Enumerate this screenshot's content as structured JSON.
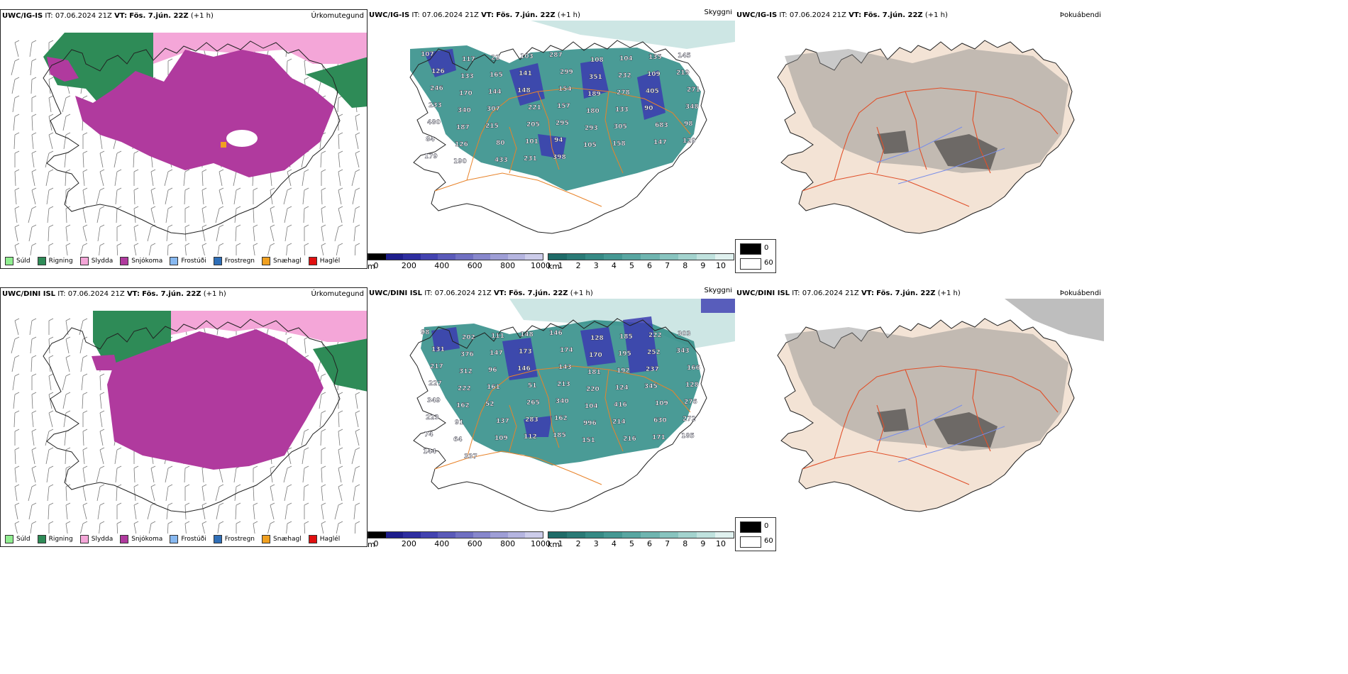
{
  "rows": [
    {
      "model": "UWC/IG-IS",
      "it_label": "IT:",
      "it_value": "07.06.2024 21Z",
      "vt_label": "VT:",
      "vt_value": "Fös. 7.jún. 22Z",
      "lead": "(+1 h)",
      "precip_title": "Úrkomutegund",
      "cloud_title": "Skyggni",
      "fog_title": "Þokuábendi",
      "cloud_numbers": [
        "107",
        "117",
        "22",
        "103",
        "287",
        "108",
        "104",
        "135",
        "145",
        "126",
        "133",
        "165",
        "141",
        "299",
        "351",
        "232",
        "109",
        "219",
        "246",
        "170",
        "144",
        "148",
        "154",
        "189",
        "278",
        "405",
        "271",
        "233",
        "340",
        "307",
        "221",
        "157",
        "180",
        "133",
        "90",
        "348",
        "480",
        "187",
        "215",
        "205",
        "295",
        "293",
        "305",
        "683",
        "98",
        "84",
        "126",
        "80",
        "101",
        "94",
        "105",
        "158",
        "147",
        "129",
        "179",
        "190",
        "433",
        "231",
        "398"
      ]
    },
    {
      "model": "UWC/DINI ISL",
      "it_label": "IT:",
      "it_value": "07.06.2024 21Z",
      "vt_label": "VT:",
      "vt_value": "Fös. 7.jún. 22Z",
      "lead": "(+1 h)",
      "precip_title": "Úrkomutegund",
      "cloud_title": "Skyggni",
      "fog_title": "Þokuábendi",
      "cloud_numbers": [
        "98",
        "202",
        "111",
        "148",
        "146",
        "128",
        "185",
        "222",
        "303",
        "131",
        "376",
        "147",
        "173",
        "174",
        "170",
        "195",
        "252",
        "343",
        "217",
        "312",
        "96",
        "146",
        "143",
        "181",
        "192",
        "237",
        "166",
        "227",
        "222",
        "161",
        "51",
        "213",
        "220",
        "124",
        "345",
        "128",
        "349",
        "162",
        "52",
        "265",
        "340",
        "104",
        "416",
        "109",
        "276",
        "223",
        "91",
        "137",
        "283",
        "162",
        "996",
        "214",
        "630",
        "272",
        "74",
        "64",
        "109",
        "112",
        "185",
        "151",
        "216",
        "171",
        "185",
        "144",
        "337"
      ]
    }
  ],
  "precip_legend": [
    {
      "label": "Súld",
      "color": "#90ee90"
    },
    {
      "label": "Rigning",
      "color": "#2e8b57"
    },
    {
      "label": "Slydda",
      "color": "#f4a6d8"
    },
    {
      "label": "Snjókoma",
      "color": "#b03a9e"
    },
    {
      "label": "Frostúði",
      "color": "#87b8f0"
    },
    {
      "label": "Frostregn",
      "color": "#2f6fb8"
    },
    {
      "label": "Snæhagl",
      "color": "#f0a020"
    },
    {
      "label": "Haglél",
      "color": "#e01010"
    }
  ],
  "ceiling_scale": {
    "unit": "m",
    "ticks": [
      "0",
      "200",
      "400",
      "600",
      "800",
      "1000"
    ],
    "colors": [
      "#000000",
      "#1e1e8c",
      "#2e2ea0",
      "#4343b0",
      "#5a5ab9",
      "#7070c2",
      "#8787cc",
      "#9e9ed6",
      "#b5b5e0",
      "#ccccea"
    ]
  },
  "visibility_scale": {
    "unit": "km",
    "ticks": [
      "1",
      "2",
      "3",
      "4",
      "5",
      "6",
      "7",
      "8",
      "9",
      "10"
    ],
    "colors": [
      "#1f6b68",
      "#2a7a76",
      "#368a85",
      "#459893",
      "#58a6a1",
      "#6fb5b0",
      "#88c4bf",
      "#a3d3ce",
      "#c0e2de",
      "#e0f1ef"
    ]
  },
  "fog_scale": {
    "low": "0",
    "high": "60"
  }
}
